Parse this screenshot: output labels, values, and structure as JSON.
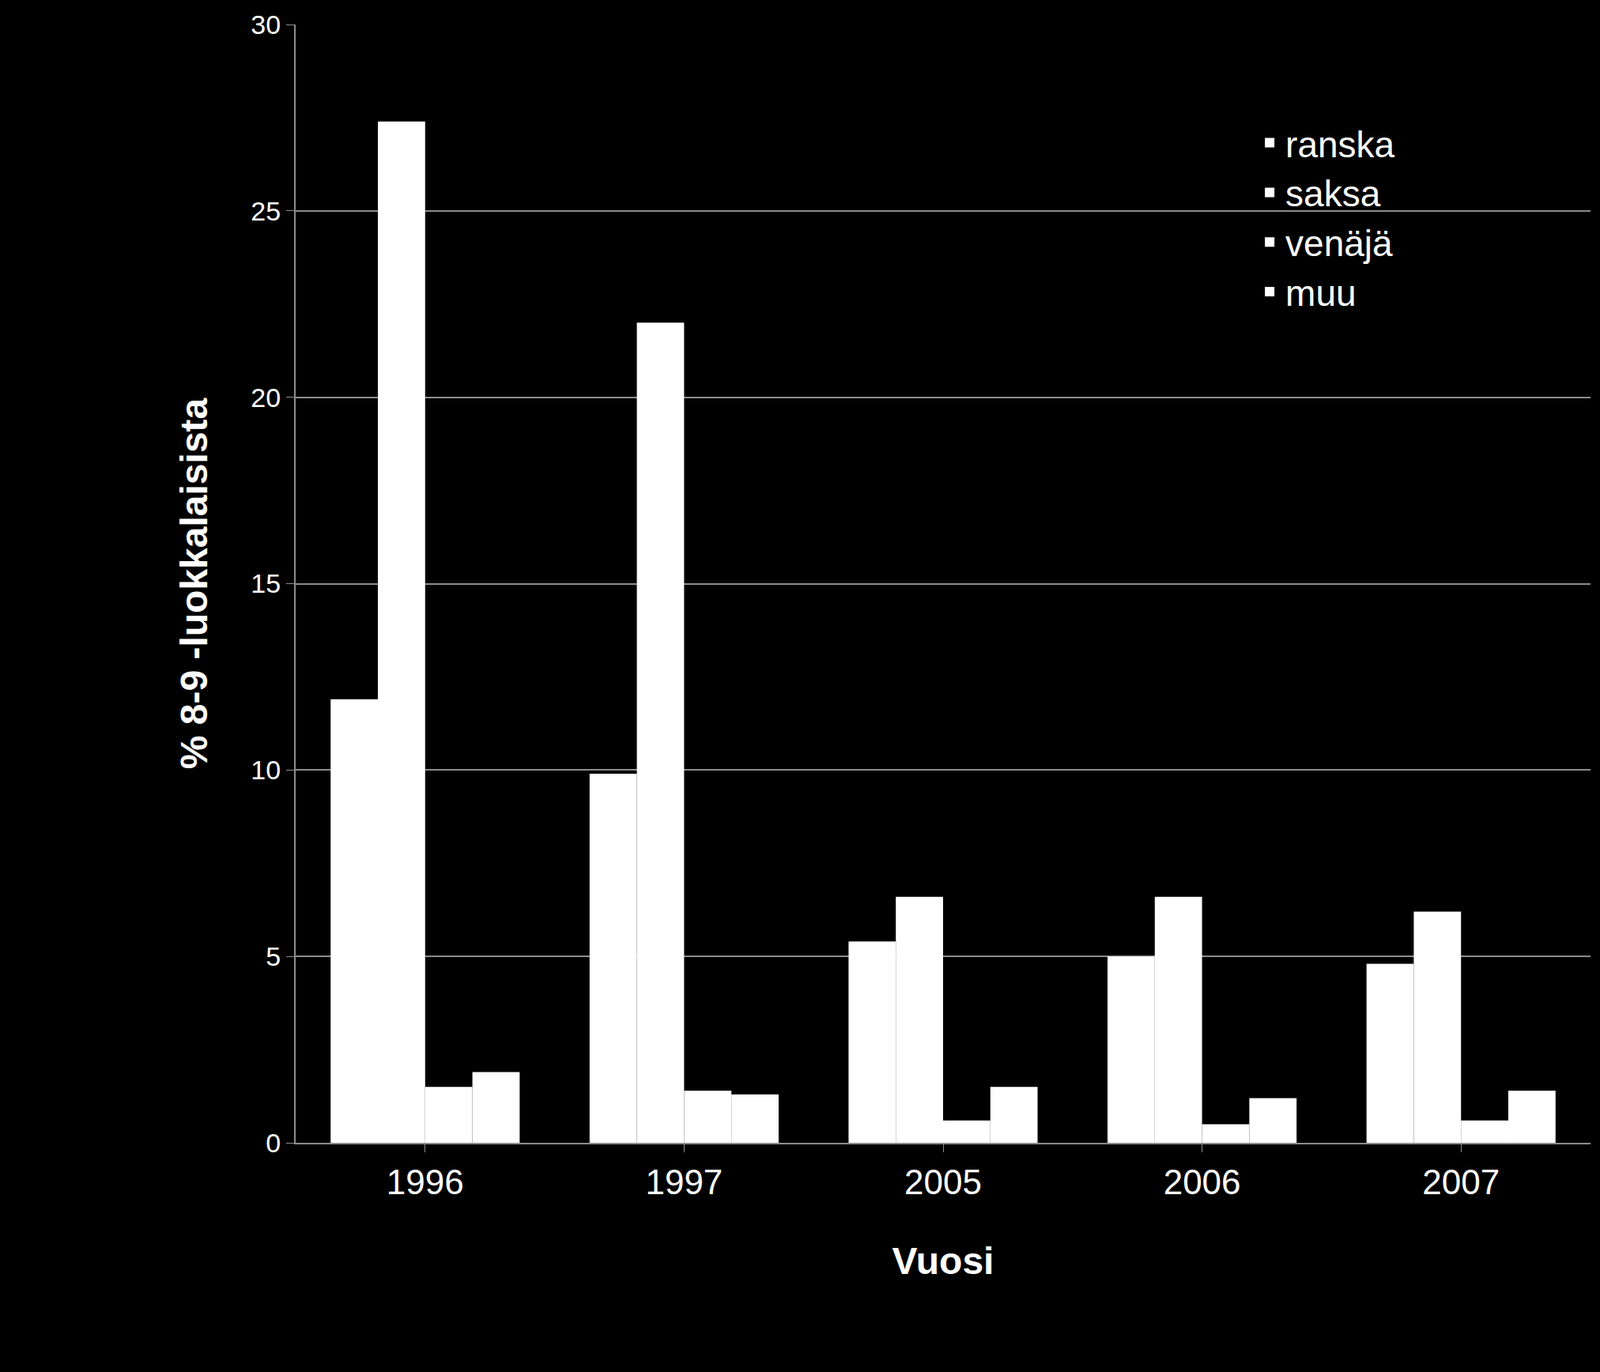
{
  "chart_data": {
    "type": "bar",
    "x_label": "Vuosi",
    "y_label": "% 8-9 -luokkalaisista",
    "categories": [
      "1996",
      "1997",
      "2005",
      "2006",
      "2007"
    ],
    "series": [
      {
        "name": "ranska",
        "color": "#ffffff",
        "values": [
          11.9,
          9.9,
          5.4,
          5.0,
          4.8
        ]
      },
      {
        "name": "saksa",
        "color": "#ffffff",
        "values": [
          27.4,
          22.0,
          6.6,
          6.6,
          6.2
        ]
      },
      {
        "name": "venäjä",
        "color": "#ffffff",
        "values": [
          1.5,
          1.4,
          0.6,
          0.5,
          0.6
        ]
      },
      {
        "name": "muu",
        "color": "#ffffff",
        "values": [
          1.9,
          1.3,
          1.5,
          1.2,
          1.4
        ]
      }
    ],
    "ylim": [
      0,
      30
    ],
    "yticks": [
      0,
      5,
      10,
      15,
      20,
      25,
      30
    ],
    "grid": true,
    "legend": "top right"
  }
}
